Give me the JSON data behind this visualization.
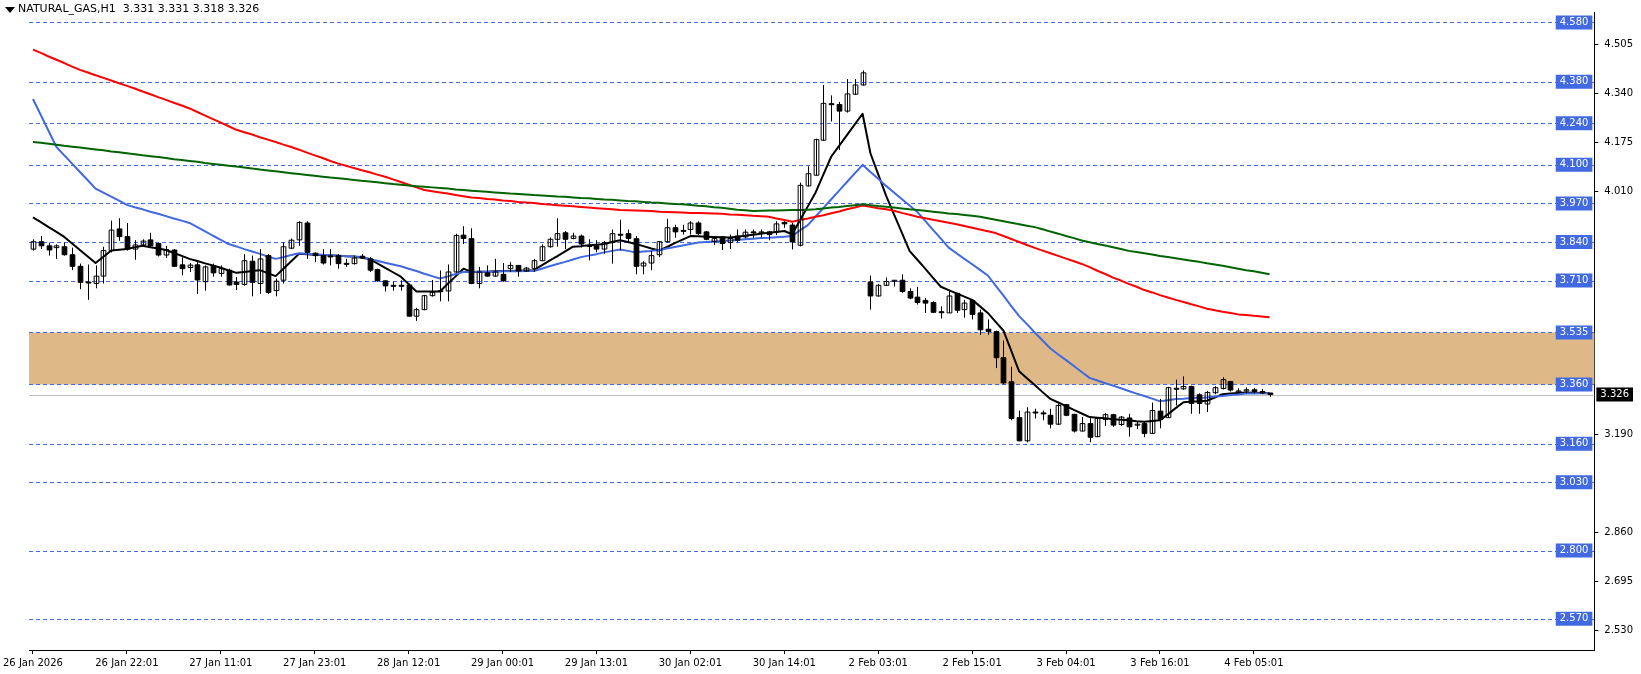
{
  "chart_data": {
    "type": "candlestick",
    "title": "NATURAL_GAS,H1  3.331 3.331 3.318 3.326",
    "color": "#000000",
    "categories": [
      "26 Jan 2026",
      null,
      null,
      null,
      null,
      null,
      null,
      null,
      null,
      null,
      null,
      null,
      "26 Jan 22:01",
      null,
      null,
      null,
      null,
      null,
      null,
      null,
      null,
      null,
      null,
      null,
      "27 Jan 11:01",
      null,
      null,
      null,
      null,
      null,
      null,
      null,
      null,
      null,
      null,
      null,
      "27 Jan 23:01",
      null,
      null,
      null,
      null,
      null,
      null,
      null,
      null,
      null,
      null,
      null,
      "28 Jan 12:01",
      null,
      null,
      null,
      null,
      null,
      null,
      null,
      null,
      null,
      null,
      null,
      "29 Jan 00:01",
      null,
      null,
      null,
      null,
      null,
      null,
      null,
      null,
      null,
      null,
      null,
      "29 Jan 13:01",
      null,
      null,
      null,
      null,
      null,
      null,
      null,
      null,
      null,
      null,
      null,
      "30 Jan 02:01",
      null,
      null,
      null,
      null,
      null,
      null,
      null,
      null,
      null,
      null,
      null,
      "30 Jan 14:01",
      null,
      null,
      null,
      null,
      null,
      null,
      null,
      null,
      null,
      null,
      null,
      "2 Feb 03:01",
      null,
      null,
      null,
      null,
      null,
      null,
      null,
      null,
      null,
      null,
      null,
      "2 Feb 15:01",
      null,
      null,
      null,
      null,
      null,
      null,
      null,
      null,
      null,
      null,
      null,
      "3 Feb 04:01",
      null,
      null,
      null,
      null,
      null,
      null,
      null,
      null,
      null,
      null,
      null,
      "3 Feb 16:01",
      null,
      null,
      null,
      null,
      null,
      null,
      null,
      null,
      null,
      null,
      null,
      "4 Feb 05:01",
      null,
      null,
      null,
      null,
      null,
      null,
      null,
      null,
      null,
      null,
      null,
      null,
      null,
      null,
      null,
      null,
      null,
      null,
      null,
      null,
      null,
      null,
      null,
      null,
      null,
      null,
      null,
      null,
      null,
      null,
      null,
      null,
      null,
      null,
      null,
      null,
      null,
      null,
      null,
      null,
      null,
      null,
      null
    ],
    "ohlc": [
      [
        3.816,
        3.849,
        3.811,
        3.841
      ],
      [
        3.841,
        3.86,
        3.816,
        3.827
      ],
      [
        3.827,
        3.838,
        3.794,
        3.813
      ],
      [
        3.821,
        3.832,
        3.783,
        3.827
      ],
      [
        3.824,
        3.838,
        3.794,
        3.797
      ],
      [
        3.797,
        3.821,
        3.745,
        3.758
      ],
      [
        3.758,
        3.767,
        3.681,
        3.704
      ],
      [
        3.705,
        3.764,
        3.645,
        3.703
      ],
      [
        3.7,
        3.761,
        3.684,
        3.725
      ],
      [
        3.725,
        3.824,
        3.7,
        3.811
      ],
      [
        3.811,
        3.912,
        3.805,
        3.88
      ],
      [
        3.884,
        3.92,
        3.844,
        3.858
      ],
      [
        3.858,
        3.904,
        3.811,
        3.816
      ],
      [
        3.816,
        3.846,
        3.78,
        3.83
      ],
      [
        3.83,
        3.849,
        3.827,
        3.843
      ],
      [
        3.847,
        3.871,
        3.821,
        3.827
      ],
      [
        3.835,
        3.835,
        3.791,
        3.796
      ],
      [
        3.796,
        3.827,
        3.786,
        3.814
      ],
      [
        3.813,
        3.816,
        3.756,
        3.758
      ],
      [
        3.763,
        3.788,
        3.728,
        3.75
      ],
      [
        3.754,
        3.769,
        3.739,
        3.762
      ],
      [
        3.763,
        3.772,
        3.665,
        3.712
      ],
      [
        3.706,
        3.761,
        3.676,
        3.756
      ],
      [
        3.759,
        3.767,
        3.723,
        3.736
      ],
      [
        3.734,
        3.761,
        3.723,
        3.75
      ],
      [
        3.745,
        3.75,
        3.693,
        3.695
      ],
      [
        3.705,
        3.722,
        3.678,
        3.697
      ],
      [
        3.697,
        3.799,
        3.693,
        3.777
      ],
      [
        3.775,
        3.794,
        3.657,
        3.704
      ],
      [
        3.7,
        3.816,
        3.665,
        3.783
      ],
      [
        3.794,
        3.799,
        3.665,
        3.67
      ],
      [
        3.676,
        3.717,
        3.657,
        3.708
      ],
      [
        3.711,
        3.838,
        3.7,
        3.824
      ],
      [
        3.819,
        3.852,
        3.816,
        3.846
      ],
      [
        3.847,
        3.91,
        3.827,
        3.906
      ],
      [
        3.904,
        3.91,
        3.783,
        3.805
      ],
      [
        3.802,
        3.805,
        3.772,
        3.794
      ],
      [
        3.794,
        3.816,
        3.764,
        3.769
      ],
      [
        3.793,
        3.816,
        3.761,
        3.792
      ],
      [
        3.794,
        3.799,
        3.75,
        3.767
      ],
      [
        3.768,
        3.783,
        3.756,
        3.767
      ],
      [
        3.767,
        3.794,
        3.764,
        3.786
      ],
      [
        3.792,
        3.799,
        3.783,
        3.786
      ],
      [
        3.783,
        3.789,
        3.739,
        3.745
      ],
      [
        3.747,
        3.75,
        3.706,
        3.709
      ],
      [
        3.709,
        3.711,
        3.673,
        3.692
      ],
      [
        3.694,
        3.706,
        3.676,
        3.693
      ],
      [
        3.694,
        3.711,
        3.676,
        3.693
      ],
      [
        3.695,
        3.7,
        3.588,
        3.59
      ],
      [
        3.59,
        3.618,
        3.574,
        3.612
      ],
      [
        3.612,
        3.662,
        3.61,
        3.659
      ],
      [
        3.659,
        3.712,
        3.656,
        3.67
      ],
      [
        3.676,
        3.744,
        3.64,
        3.673
      ],
      [
        3.675,
        3.764,
        3.64,
        3.739
      ],
      [
        3.739,
        3.868,
        3.736,
        3.862
      ],
      [
        3.863,
        3.893,
        3.833,
        3.852
      ],
      [
        3.851,
        3.886,
        3.698,
        3.7
      ],
      [
        3.7,
        3.756,
        3.684,
        3.739
      ],
      [
        3.736,
        3.761,
        3.723,
        3.725
      ],
      [
        3.725,
        3.783,
        3.723,
        3.739
      ],
      [
        3.731,
        3.769,
        3.706,
        3.709
      ],
      [
        3.75,
        3.772,
        3.739,
        3.761
      ],
      [
        3.761,
        3.761,
        3.723,
        3.742
      ],
      [
        3.742,
        3.756,
        3.739,
        3.752
      ],
      [
        3.75,
        3.783,
        3.739,
        3.777
      ],
      [
        3.777,
        3.832,
        3.775,
        3.824
      ],
      [
        3.824,
        3.855,
        3.821,
        3.849
      ],
      [
        3.849,
        3.92,
        3.824,
        3.868
      ],
      [
        3.871,
        3.877,
        3.816,
        3.849
      ],
      [
        3.852,
        3.871,
        3.849,
        3.86
      ],
      [
        3.86,
        3.865,
        3.821,
        3.833
      ],
      [
        3.828,
        3.849,
        3.778,
        3.827
      ],
      [
        3.827,
        3.846,
        3.805,
        3.816
      ],
      [
        3.816,
        3.843,
        3.8,
        3.838
      ],
      [
        3.838,
        3.882,
        3.767,
        3.868
      ],
      [
        3.866,
        3.915,
        3.811,
        3.865
      ],
      [
        3.868,
        3.882,
        3.838,
        3.852
      ],
      [
        3.851,
        3.86,
        3.731,
        3.758
      ],
      [
        3.759,
        3.775,
        3.731,
        3.769
      ],
      [
        3.769,
        3.81,
        3.745,
        3.794
      ],
      [
        3.797,
        3.843,
        3.789,
        3.841
      ],
      [
        3.841,
        3.918,
        3.838,
        3.888
      ],
      [
        3.888,
        3.898,
        3.854,
        3.874
      ],
      [
        3.879,
        3.898,
        3.865,
        3.878
      ],
      [
        3.882,
        3.91,
        3.865,
        3.904
      ],
      [
        3.904,
        3.91,
        3.863,
        3.868
      ],
      [
        3.874,
        3.877,
        3.846,
        3.849
      ],
      [
        3.841,
        3.857,
        3.83,
        3.852
      ],
      [
        3.857,
        3.86,
        3.813,
        3.835
      ],
      [
        3.838,
        3.865,
        3.816,
        3.852
      ],
      [
        3.86,
        3.882,
        3.838,
        3.846
      ],
      [
        3.857,
        3.882,
        3.852,
        3.873
      ],
      [
        3.874,
        3.882,
        3.854,
        3.873
      ],
      [
        3.873,
        3.882,
        3.855,
        3.874
      ],
      [
        3.874,
        3.877,
        3.846,
        3.865
      ],
      [
        3.874,
        3.91,
        3.863,
        3.901
      ],
      [
        3.906,
        3.91,
        3.888,
        3.901
      ],
      [
        3.897,
        3.904,
        3.815,
        3.84
      ],
      [
        3.829,
        4.04,
        3.825,
        4.031
      ],
      [
        4.029,
        4.095,
        4.027,
        4.07
      ],
      [
        4.065,
        4.188,
        4.064,
        4.185
      ],
      [
        4.183,
        4.369,
        4.181,
        4.307
      ],
      [
        4.306,
        4.334,
        4.246,
        4.305
      ],
      [
        4.303,
        4.312,
        4.15,
        4.281
      ],
      [
        4.281,
        4.389,
        4.276,
        4.339
      ],
      [
        4.338,
        4.389,
        4.336,
        4.369
      ],
      [
        4.369,
        4.418,
        4.367,
        4.41
      ],
      [
        3.705,
        3.727,
        3.612,
        3.658
      ],
      [
        3.658,
        3.698,
        3.656,
        3.694
      ],
      [
        3.694,
        3.72,
        3.692,
        3.707
      ],
      [
        3.711,
        3.712,
        3.69,
        3.711
      ],
      [
        3.711,
        3.731,
        3.669,
        3.673
      ],
      [
        3.673,
        3.684,
        3.647,
        3.651
      ],
      [
        3.654,
        3.689,
        3.629,
        3.636
      ],
      [
        3.643,
        3.651,
        3.601,
        3.634
      ],
      [
        3.636,
        3.64,
        3.601,
        3.603
      ],
      [
        3.605,
        3.623,
        3.582,
        3.604
      ],
      [
        3.601,
        3.678,
        3.601,
        3.658
      ],
      [
        3.667,
        3.669,
        3.601,
        3.61
      ],
      [
        3.612,
        3.645,
        3.585,
        3.634
      ],
      [
        3.643,
        3.647,
        3.579,
        3.596
      ],
      [
        3.601,
        3.612,
        3.527,
        3.544
      ],
      [
        3.546,
        3.579,
        3.527,
        3.538
      ],
      [
        3.538,
        3.541,
        3.415,
        3.45
      ],
      [
        3.45,
        3.508,
        3.36,
        3.365
      ],
      [
        3.369,
        3.42,
        3.239,
        3.245
      ],
      [
        3.248,
        3.272,
        3.168,
        3.17
      ],
      [
        3.17,
        3.283,
        3.165,
        3.267
      ],
      [
        3.267,
        3.278,
        3.245,
        3.266
      ],
      [
        3.264,
        3.272,
        3.239,
        3.263
      ],
      [
        3.256,
        3.278,
        3.212,
        3.226
      ],
      [
        3.226,
        3.294,
        3.223,
        3.289
      ],
      [
        3.292,
        3.294,
        3.253,
        3.256
      ],
      [
        3.259,
        3.261,
        3.198,
        3.203
      ],
      [
        3.203,
        3.25,
        3.201,
        3.228
      ],
      [
        3.228,
        3.25,
        3.165,
        3.182
      ],
      [
        3.184,
        3.25,
        3.182,
        3.245
      ],
      [
        3.242,
        3.264,
        3.22,
        3.258
      ],
      [
        3.258,
        3.261,
        3.217,
        3.223
      ],
      [
        3.225,
        3.253,
        3.22,
        3.25
      ],
      [
        3.247,
        3.261,
        3.184,
        3.217
      ],
      [
        3.226,
        3.234,
        3.209,
        3.226
      ],
      [
        3.228,
        3.234,
        3.182,
        3.195
      ],
      [
        3.195,
        3.299,
        3.193,
        3.272
      ],
      [
        3.27,
        3.311,
        3.212,
        3.242
      ],
      [
        3.248,
        3.352,
        3.248,
        3.349
      ],
      [
        3.347,
        3.376,
        3.289,
        3.346
      ],
      [
        3.345,
        3.387,
        3.342,
        3.353
      ],
      [
        3.353,
        3.356,
        3.261,
        3.296
      ],
      [
        3.325,
        3.33,
        3.261,
        3.296
      ],
      [
        3.294,
        3.338,
        3.267,
        3.333
      ],
      [
        3.332,
        3.354,
        3.327,
        3.349
      ],
      [
        3.346,
        3.384,
        3.343,
        3.376
      ],
      [
        3.37,
        3.371,
        3.336,
        3.341
      ],
      [
        3.338,
        3.347,
        3.333,
        3.338
      ],
      [
        3.338,
        3.35,
        3.33,
        3.342
      ],
      [
        3.342,
        3.348,
        3.33,
        3.336
      ],
      [
        3.336,
        3.345,
        3.327,
        3.331
      ],
      [
        3.331,
        3.331,
        3.318,
        3.326
      ],
      null,
      null,
      null,
      null,
      null,
      null,
      null,
      null,
      null,
      null,
      null,
      null,
      null,
      null,
      null,
      null,
      null,
      null,
      null,
      null,
      null,
      null,
      null,
      null,
      null,
      null,
      null,
      null,
      null,
      null,
      null,
      null,
      null,
      null,
      null,
      null,
      null,
      null,
      null,
      null,
      null
    ],
    "series": [
      {
        "type": "line",
        "color": "#006400",
        "values": [
          4.177,
          4.174,
          4.171,
          4.168,
          4.164,
          4.161,
          4.158,
          4.155,
          4.152,
          4.149,
          4.145,
          4.142,
          4.139,
          4.136,
          4.132,
          4.129,
          4.126,
          4.123,
          4.119,
          4.116,
          4.113,
          4.11,
          4.106,
          4.103,
          4.1,
          4.097,
          4.094,
          4.091,
          4.088,
          4.084,
          4.081,
          4.078,
          4.075,
          4.072,
          4.069,
          4.066,
          4.063,
          4.06,
          4.057,
          4.055,
          4.052,
          4.049,
          4.046,
          4.044,
          4.041,
          4.038,
          4.035,
          4.033,
          4.03,
          4.028,
          4.026,
          4.024,
          4.022,
          4.02,
          4.017,
          4.015,
          4.013,
          4.011,
          4.009,
          4.007,
          4.005,
          4.003,
          4.002,
          4.0,
          3.998,
          3.997,
          3.995,
          3.993,
          3.992,
          3.99,
          3.988,
          3.987,
          3.985,
          3.983,
          3.982,
          3.98,
          3.978,
          3.977,
          3.975,
          3.973,
          3.972,
          3.97,
          3.968,
          3.967,
          3.965,
          3.962,
          3.96,
          3.957,
          3.955,
          3.952,
          3.949,
          3.947,
          3.944,
          3.945,
          3.946,
          3.946,
          3.947,
          3.948,
          3.948,
          3.949,
          3.95,
          3.953,
          3.956,
          3.958,
          3.961,
          3.964,
          3.967,
          3.964,
          3.961,
          3.959,
          3.956,
          3.953,
          3.95,
          3.948,
          3.945,
          3.942,
          3.939,
          3.936,
          3.934,
          3.931,
          3.928,
          3.925,
          3.92,
          3.915,
          3.91,
          3.905,
          3.9,
          3.895,
          3.89,
          3.883,
          3.875,
          3.868,
          3.86,
          3.853,
          3.845,
          3.839,
          3.833,
          3.828,
          3.822,
          3.816,
          3.81,
          3.806,
          3.802,
          3.798,
          3.793,
          3.789,
          3.785,
          3.781,
          3.777,
          3.773,
          3.768,
          3.764,
          3.76,
          3.755,
          3.75,
          3.745,
          3.741,
          3.736,
          3.731,
          null,
          null,
          null,
          null,
          null,
          null,
          null,
          null,
          null,
          null,
          null,
          null,
          null,
          null,
          null,
          null,
          null,
          null,
          null,
          null,
          null,
          null,
          null,
          null,
          null,
          null,
          null,
          null,
          null,
          null,
          null,
          null,
          null,
          null,
          null,
          null,
          null,
          null,
          null,
          null,
          null
        ]
      },
      {
        "type": "line",
        "color": "#ff0000",
        "values": [
          4.488,
          4.477,
          4.465,
          4.454,
          4.443,
          4.431,
          4.42,
          4.411,
          4.402,
          4.393,
          4.384,
          4.375,
          4.366,
          4.357,
          4.347,
          4.338,
          4.328,
          4.319,
          4.309,
          4.3,
          4.29,
          4.278,
          4.266,
          4.254,
          4.242,
          4.23,
          4.218,
          4.21,
          4.202,
          4.193,
          4.185,
          4.177,
          4.168,
          4.16,
          4.151,
          4.141,
          4.132,
          4.123,
          4.113,
          4.104,
          4.097,
          4.089,
          4.082,
          4.075,
          4.067,
          4.06,
          4.051,
          4.042,
          4.033,
          4.024,
          4.015,
          4.011,
          4.007,
          4.003,
          3.998,
          3.994,
          3.99,
          3.988,
          3.985,
          3.983,
          3.98,
          3.978,
          3.975,
          3.973,
          3.971,
          3.968,
          3.966,
          3.964,
          3.962,
          3.96,
          3.958,
          3.956,
          3.954,
          3.952,
          3.95,
          3.948,
          3.947,
          3.946,
          3.945,
          3.944,
          3.942,
          3.941,
          3.94,
          3.939,
          3.938,
          3.938,
          3.937,
          3.936,
          3.935,
          3.933,
          3.932,
          3.93,
          3.928,
          3.927,
          3.925,
          3.919,
          3.914,
          3.908,
          3.914,
          3.919,
          3.925,
          3.93,
          3.937,
          3.943,
          3.95,
          3.956,
          3.963,
          3.959,
          3.954,
          3.95,
          3.945,
          3.938,
          3.932,
          3.925,
          3.92,
          3.915,
          3.91,
          3.905,
          3.9,
          3.894,
          3.888,
          3.882,
          3.876,
          3.87,
          3.86,
          3.85,
          3.84,
          3.83,
          3.82,
          3.811,
          3.802,
          3.793,
          3.784,
          3.775,
          3.766,
          3.755,
          3.743,
          3.732,
          3.72,
          3.71,
          3.699,
          3.689,
          3.678,
          3.67,
          3.661,
          3.653,
          3.645,
          3.638,
          3.63,
          3.623,
          3.615,
          3.61,
          3.605,
          3.601,
          3.596,
          3.594,
          3.591,
          3.589,
          3.586,
          null,
          null,
          null,
          null,
          null,
          null,
          null,
          null,
          null,
          null,
          null,
          null,
          null,
          null,
          null,
          null,
          null,
          null,
          null,
          null,
          null,
          null,
          null,
          null,
          null,
          null,
          null,
          null,
          null,
          null,
          null,
          null,
          null,
          null,
          null,
          null,
          null,
          null,
          null,
          null,
          null
        ]
      },
      {
        "type": "line",
        "color": "#4169e1",
        "values": [
          4.322,
          4.268,
          4.214,
          4.16,
          4.132,
          4.104,
          4.076,
          4.048,
          4.02,
          4.006,
          3.993,
          3.979,
          3.965,
          3.957,
          3.95,
          3.942,
          3.935,
          3.927,
          3.919,
          3.912,
          3.904,
          3.89,
          3.876,
          3.861,
          3.847,
          3.833,
          3.825,
          3.816,
          3.808,
          3.8,
          3.791,
          3.783,
          3.789,
          3.796,
          3.802,
          3.8,
          3.799,
          3.797,
          3.796,
          3.794,
          3.792,
          3.791,
          3.789,
          3.783,
          3.777,
          3.77,
          3.764,
          3.758,
          3.75,
          3.742,
          3.733,
          3.725,
          3.717,
          3.724,
          3.732,
          3.739,
          3.739,
          3.74,
          3.74,
          3.74,
          3.741,
          3.741,
          3.741,
          3.742,
          3.742,
          3.75,
          3.758,
          3.766,
          3.773,
          3.781,
          3.789,
          3.794,
          3.799,
          3.805,
          3.81,
          3.815,
          3.81,
          3.805,
          3.808,
          3.81,
          3.813,
          3.818,
          3.823,
          3.828,
          3.833,
          3.838,
          3.84,
          3.842,
          3.843,
          3.845,
          3.847,
          3.849,
          3.851,
          3.853,
          3.854,
          3.856,
          3.858,
          3.86,
          3.879,
          3.897,
          3.926,
          3.955,
          3.984,
          4.013,
          4.042,
          4.071,
          4.1,
          4.076,
          4.053,
          4.029,
          4.007,
          3.985,
          3.963,
          3.941,
          3.911,
          3.881,
          3.851,
          3.821,
          3.802,
          3.783,
          3.765,
          3.746,
          3.727,
          3.693,
          3.659,
          3.624,
          3.59,
          3.563,
          3.535,
          3.508,
          3.481,
          3.461,
          3.442,
          3.422,
          3.402,
          3.382,
          3.373,
          3.364,
          3.356,
          3.347,
          3.338,
          3.329,
          3.321,
          3.312,
          3.303,
          3.307,
          3.311,
          3.312,
          3.314,
          3.315,
          3.316,
          3.319,
          3.321,
          3.324,
          3.326,
          3.329,
          3.329,
          3.33,
          3.33,
          null,
          null,
          null,
          null,
          null,
          null,
          null,
          null,
          null,
          null,
          null,
          null,
          null,
          null,
          null,
          null,
          null,
          null,
          null,
          null,
          null,
          null,
          null,
          null,
          null,
          null,
          null,
          null,
          null,
          null,
          null,
          null,
          null,
          null,
          null,
          null,
          null,
          null,
          null,
          null,
          null
        ]
      },
      {
        "type": "line",
        "color": "#000000",
        "values": [
          3.923,
          3.907,
          3.89,
          3.874,
          3.857,
          3.835,
          3.813,
          3.791,
          3.769,
          3.79,
          3.811,
          3.814,
          3.816,
          3.822,
          3.827,
          3.822,
          3.818,
          3.813,
          3.803,
          3.793,
          3.783,
          3.776,
          3.768,
          3.761,
          3.753,
          3.744,
          3.736,
          3.739,
          3.742,
          3.745,
          3.735,
          3.725,
          3.75,
          3.775,
          3.8,
          3.799,
          3.797,
          3.796,
          3.795,
          3.794,
          3.792,
          3.791,
          3.787,
          3.783,
          3.768,
          3.753,
          3.738,
          3.723,
          3.698,
          3.673,
          3.673,
          3.673,
          3.673,
          3.699,
          3.724,
          3.75,
          3.739,
          3.74,
          3.74,
          3.741,
          3.742,
          3.742,
          3.743,
          3.744,
          3.745,
          3.761,
          3.777,
          3.792,
          3.808,
          3.824,
          3.826,
          3.829,
          3.831,
          3.833,
          3.84,
          3.846,
          3.84,
          3.833,
          3.826,
          3.818,
          3.811,
          3.823,
          3.836,
          3.848,
          3.86,
          3.859,
          3.858,
          3.857,
          3.856,
          3.855,
          3.858,
          3.861,
          3.864,
          3.868,
          3.871,
          3.874,
          3.877,
          3.866,
          3.913,
          3.96,
          4.007,
          4.068,
          4.128,
          4.164,
          4.2,
          4.236,
          4.272,
          4.139,
          4.068,
          3.996,
          3.934,
          3.872,
          3.81,
          3.78,
          3.75,
          3.719,
          3.689,
          3.678,
          3.667,
          3.656,
          3.645,
          3.623,
          3.601,
          3.571,
          3.541,
          3.473,
          3.404,
          3.381,
          3.358,
          3.334,
          3.311,
          3.299,
          3.287,
          3.274,
          3.262,
          3.25,
          3.248,
          3.246,
          3.243,
          3.241,
          3.239,
          3.236,
          3.234,
          3.237,
          3.239,
          3.259,
          3.28,
          3.3,
          3.302,
          3.303,
          3.305,
          3.316,
          3.327,
          3.329,
          3.331,
          3.333,
          3.332,
          3.331,
          3.33,
          null,
          null,
          null,
          null,
          null,
          null,
          null,
          null,
          null,
          null,
          null,
          null,
          null,
          null,
          null,
          null,
          null,
          null,
          null,
          null,
          null,
          null,
          null,
          null,
          null,
          null,
          null,
          null,
          null,
          null,
          null,
          null,
          null,
          null,
          null,
          null,
          null,
          null,
          null,
          null,
          null
        ]
      }
    ],
    "ylim": [
      2.465,
      4.615
    ],
    "yticks": [
      {
        "value": 2.53,
        "label": "2.530"
      },
      2.695,
      {
        "value": 2.86,
        "label": "2.860"
      },
      {
        "value": 3.19,
        "label": "3.190"
      },
      {
        "value": 4.01,
        "label": "4.010"
      },
      4.175,
      {
        "value": 4.34,
        "label": "4.340"
      },
      4.505
    ],
    "bands": [
      {
        "axis": "y",
        "from": 3.36,
        "to": 3.535,
        "color": "#deb887"
      }
    ],
    "ref_lines": [
      {
        "axis": "y",
        "value": 4.58,
        "label": "4.580",
        "color": "#4169e1",
        "line_style": "dashed"
      },
      {
        "axis": "y",
        "value": 4.38,
        "label": "4.380",
        "color": "#4169e1",
        "line_style": "dashed"
      },
      {
        "axis": "y",
        "value": 4.24,
        "label": "4.240",
        "color": "#4169e1",
        "line_style": "dashed"
      },
      {
        "axis": "y",
        "value": 4.1,
        "label": "4.100",
        "color": "#4169e1",
        "line_style": "dashed"
      },
      {
        "axis": "y",
        "value": 3.97,
        "label": "3.970",
        "color": "#4169e1",
        "line_style": "dashed"
      },
      {
        "axis": "y",
        "value": 3.84,
        "label": "3.840",
        "color": "#4169e1",
        "line_style": "dashed"
      },
      {
        "axis": "y",
        "value": 3.71,
        "label": "3.710",
        "color": "#4169e1",
        "line_style": "dashed"
      },
      {
        "axis": "y",
        "value": 3.535,
        "label": "3.535",
        "color": "#4169e1",
        "line_style": "dashed"
      },
      {
        "axis": "y",
        "value": 3.36,
        "label": "3.360",
        "color": "#4169e1",
        "line_style": "dashed"
      },
      {
        "axis": "y",
        "value": 3.16,
        "label": "3.160",
        "color": "#4169e1",
        "line_style": "dashed"
      },
      {
        "axis": "y",
        "value": 3.03,
        "label": "3.030",
        "color": "#4169e1",
        "line_style": "dashed"
      },
      {
        "axis": "y",
        "value": 2.8,
        "label": "2.800",
        "color": "#4169e1",
        "line_style": "dashed"
      },
      {
        "axis": "y",
        "value": 2.57,
        "label": "2.570",
        "color": "#4169e1",
        "line_style": "dashed"
      },
      {
        "axis": "y",
        "value": 3.326,
        "label": "3.326",
        "color": "#c0c0c0",
        "line_style": "solid"
      }
    ]
  }
}
